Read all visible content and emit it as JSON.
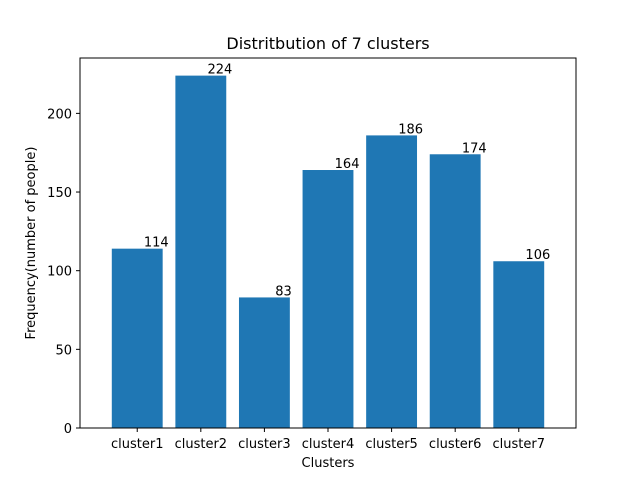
{
  "chart_data": {
    "type": "bar",
    "title": "Distritbution of 7 clusters",
    "xlabel": "Clusters",
    "ylabel": "Frequency(number of people)",
    "categories": [
      "cluster1",
      "cluster2",
      "cluster3",
      "cluster4",
      "cluster5",
      "cluster6",
      "cluster7"
    ],
    "values": [
      114,
      224,
      83,
      164,
      186,
      174,
      106
    ],
    "ylim": [
      0,
      235.2
    ],
    "yticks": [
      0,
      50,
      100,
      150,
      200
    ],
    "bar_color": "#1f77b4",
    "grid": false,
    "legend": "none"
  }
}
